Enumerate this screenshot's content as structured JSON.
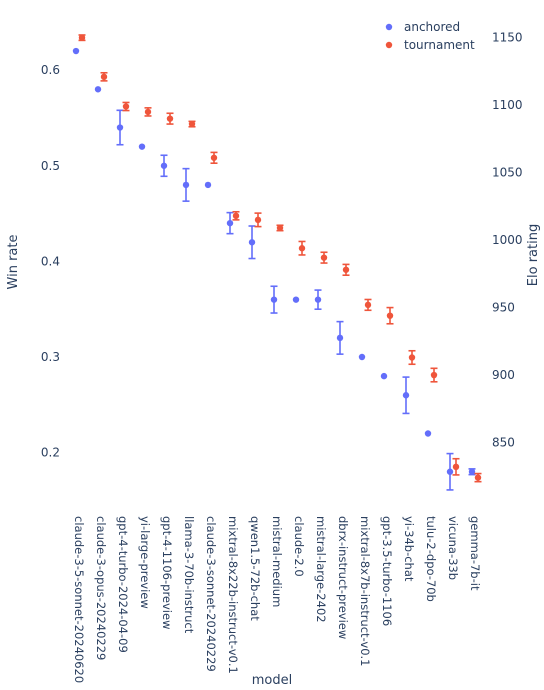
{
  "chart_data": {
    "type": "scatter",
    "xlabel": "model",
    "ylabel_left": "Win rate",
    "ylabel_right": "Elo rating",
    "grid": false,
    "legend_position": "top-right",
    "ylim_left": [
      0.14,
      0.665
    ],
    "ylim_right": [
      800,
      1172
    ],
    "yticks_left": [
      0.2,
      0.3,
      0.4,
      0.5,
      0.6
    ],
    "yticks_right": [
      850,
      900,
      950,
      1000,
      1050,
      1100,
      1150
    ],
    "categories": [
      "claude-3-5-sonnet-20240620",
      "claude-3-opus-20240229",
      "gpt-4-turbo-2024-04-09",
      "yi-large-preview",
      "gpt-4-1106-preview",
      "llama-3-70b-instruct",
      "claude-3-sonnet-20240229",
      "mixtral-8x22b-instruct-v0.1",
      "qwen1.5-72b-chat",
      "mistral-medium",
      "claude-2.0",
      "mistral-large-2402",
      "dbrx-instruct-preview",
      "mixtral-8x7b-instruct-v0.1",
      "gpt-3.5-turbo-1106",
      "yi-34b-chat",
      "tulu-2-dpo-70b",
      "vicuna-33b",
      "gemma-7b-it"
    ],
    "series": [
      {
        "name": "anchored",
        "axis": "left",
        "color": "#636efa",
        "values": [
          0.62,
          0.58,
          0.54,
          0.52,
          0.5,
          0.48,
          0.48,
          0.44,
          0.42,
          0.36,
          0.36,
          0.36,
          0.32,
          0.3,
          0.28,
          0.26,
          0.22,
          0.18,
          0.18
        ],
        "error": [
          0.0,
          0.0,
          0.018,
          0.0,
          0.011,
          0.017,
          0.0,
          0.011,
          0.017,
          0.014,
          0.0,
          0.01,
          0.017,
          0.0,
          0.0,
          0.019,
          0.0,
          0.019,
          0.003
        ]
      },
      {
        "name": "tournament",
        "axis": "right",
        "color": "#ef553b",
        "values": [
          1150,
          1121,
          1099,
          1095,
          1090,
          1086,
          1061,
          1018,
          1015,
          1009,
          994,
          987,
          978,
          952,
          944,
          913,
          900,
          832,
          824
        ],
        "error": [
          2,
          3,
          3,
          3,
          4,
          2,
          4,
          3,
          5,
          2,
          5,
          4,
          4,
          4,
          6,
          5,
          5,
          6,
          3
        ]
      }
    ]
  }
}
